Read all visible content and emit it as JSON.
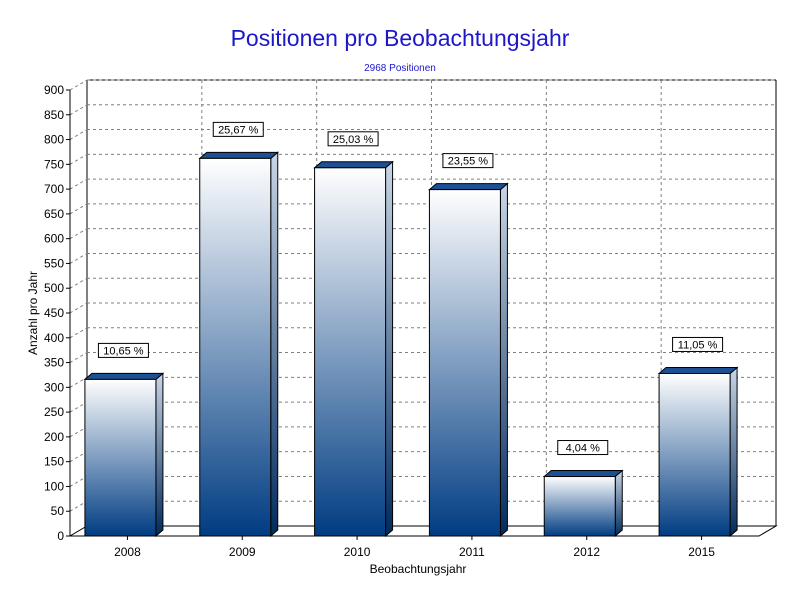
{
  "chart_data": {
    "type": "bar",
    "title": "Positionen pro Beobachtungsjahr",
    "subtitle": "2968 Positionen",
    "xlabel": "Beobachtungsjahr",
    "ylabel": "Anzahl pro Jahr",
    "categories": [
      "2008",
      "2009",
      "2010",
      "2011",
      "2012",
      "2015"
    ],
    "values": [
      316,
      762,
      743,
      699,
      120,
      328
    ],
    "data_labels": [
      "10,65 %",
      "25,67 %",
      "25,03 %",
      "23,55 %",
      "4,04 %",
      "11,05 %"
    ],
    "ylim": [
      0,
      900
    ],
    "y_ticks": [
      "0",
      "50",
      "100",
      "150",
      "200",
      "250",
      "300",
      "350",
      "400",
      "450",
      "500",
      "550",
      "600",
      "650",
      "700",
      "750",
      "800",
      "850",
      "900"
    ],
    "grid": true,
    "colors": {
      "bar_top": "#ffffff",
      "bar_bottom": "#003c82",
      "bar_side": "#1a4f8f",
      "title": "#1c17c9",
      "grid": "#808080"
    }
  }
}
